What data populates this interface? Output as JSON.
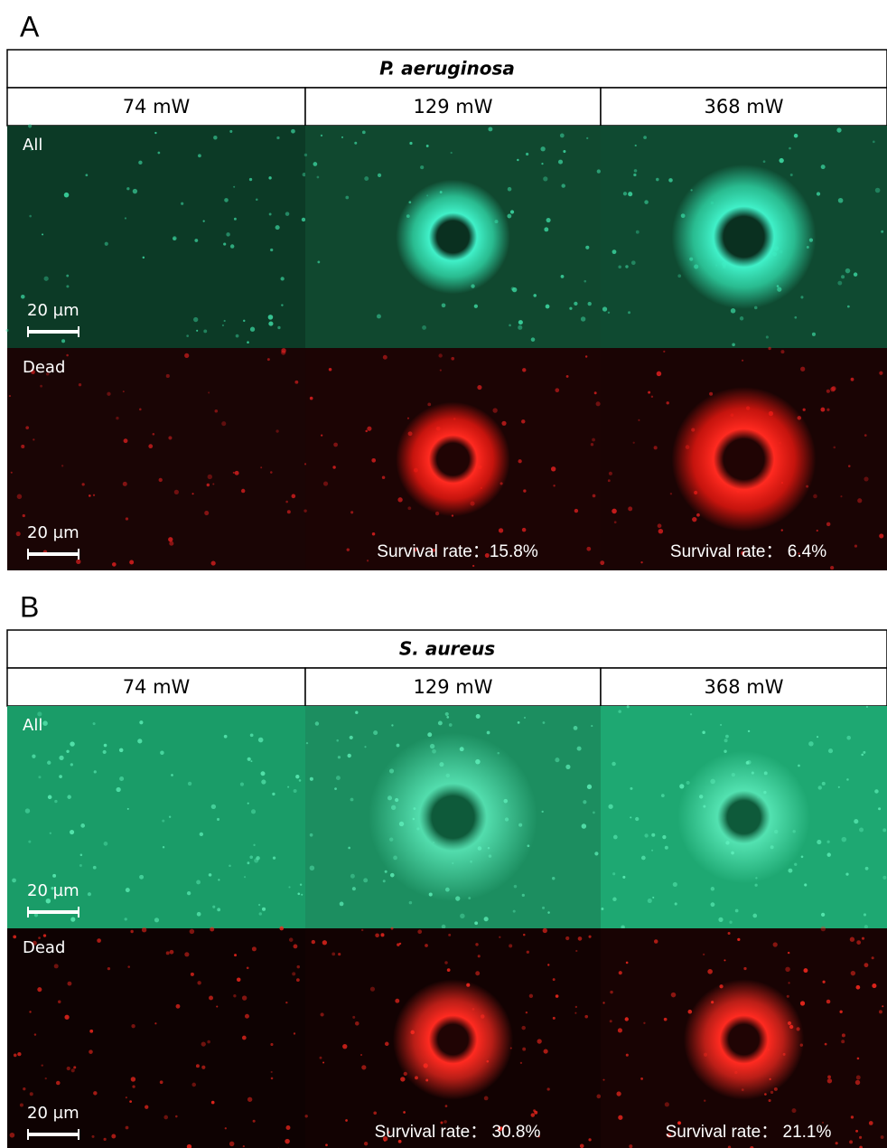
{
  "panels": [
    {
      "label": "A",
      "title": "P. aeruginosa",
      "columns": [
        "74 mW",
        "129 mW",
        "368 mW"
      ],
      "rows": [
        {
          "label": "All",
          "scale_bar": "20 µm"
        },
        {
          "label": "Dead",
          "scale_bar": "20 µm",
          "survival": [
            "Survival rate：15.8%",
            "Survival rate： 6.4%"
          ]
        }
      ]
    },
    {
      "label": "B",
      "title": "S. aureus",
      "columns": [
        "74 mW",
        "129 mW",
        "368 mW"
      ],
      "rows": [
        {
          "label": "All",
          "scale_bar": "20 µm"
        },
        {
          "label": "Dead",
          "scale_bar": "20 µm",
          "survival": [
            "Survival rate： 30.8%",
            "Survival rate： 21.1%"
          ]
        }
      ]
    }
  ]
}
